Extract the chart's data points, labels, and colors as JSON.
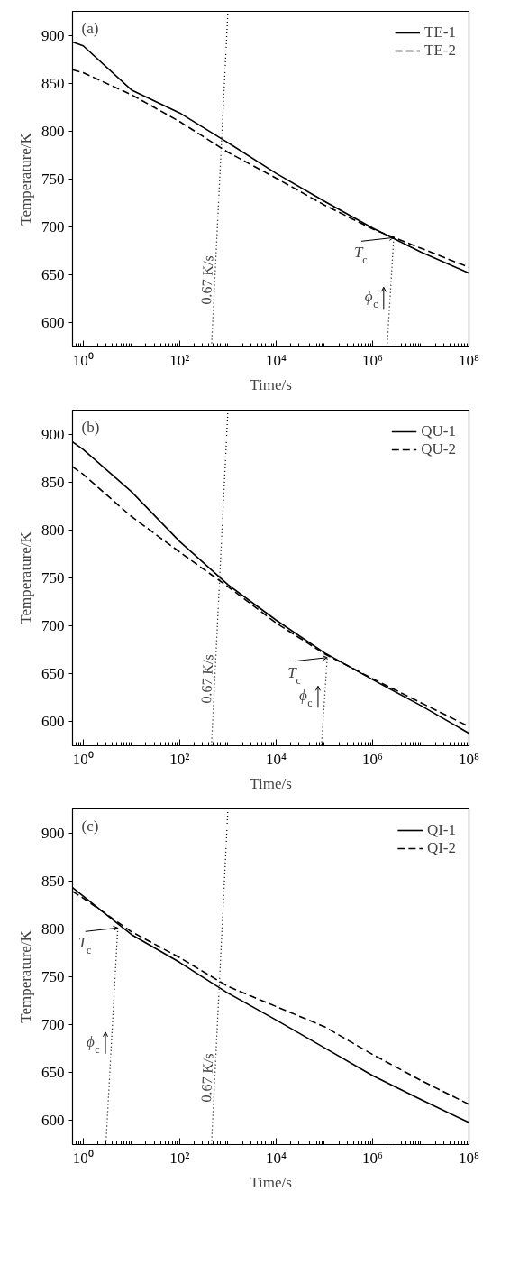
{
  "chart_data": [
    {
      "type": "line",
      "annotations": [
        "(a)",
        {
          "text": "T$_{c}$",
          "x": 2750000,
          "y": 689
        },
        {
          "text": "ϕ$_{c}$",
          "x": 2300000,
          "y": 626
        }
      ],
      "xlabel": "Time/s",
      "ylabel": "Temperature/K",
      "log": "x",
      "legend": "top right",
      "xlim": [
        0.6,
        100000000
      ],
      "ylim": [
        575,
        925
      ],
      "xticks": [
        {
          "value": 1,
          "label": "10⁰"
        },
        {
          "value": 100,
          "label": "10²"
        },
        {
          "value": 10000,
          "label": "10⁴"
        },
        {
          "value": 1000000,
          "label": "10⁶"
        },
        {
          "value": 100000000,
          "label": "10⁸"
        }
      ],
      "yticks": [
        600,
        650,
        700,
        750,
        800,
        850,
        900
      ],
      "x": [
        0.6,
        1,
        10,
        100,
        1000,
        10000,
        100000,
        1000000,
        10000000,
        100000000
      ],
      "series": [
        {
          "name": "TE-1",
          "color": "#000000",
          "line_style": "solid",
          "values": [
            893,
            889,
            843,
            819,
            788,
            756,
            727,
            699,
            674,
            652
          ]
        },
        {
          "name": "TE-2",
          "color": "#000000",
          "line_style": "dashed",
          "values": [
            864,
            861,
            838,
            810,
            778,
            751,
            723,
            698,
            678,
            658
          ]
        },
        {
          "name": "0.67 K/s",
          "color": "#000000",
          "line_style": "dotted",
          "x": [
            457,
            1000
          ],
          "values": [
            575,
            925
          ]
        },
        {
          "color": "#000000",
          "line_style": "dotted",
          "x": [
            2000000,
            2750000
          ],
          "values": [
            575,
            689
          ]
        }
      ]
    },
    {
      "type": "line",
      "annotations": [
        "(b)",
        {
          "text": "T$_{c}$",
          "x": 115000,
          "y": 667
        },
        {
          "text": "ϕ$_{c}$",
          "x": 100000,
          "y": 626
        }
      ],
      "xlabel": "Time/s",
      "ylabel": "Temperature/K",
      "log": "x",
      "legend": "top right",
      "xlim": [
        0.6,
        100000000
      ],
      "ylim": [
        575,
        925
      ],
      "xticks": [
        {
          "value": 1,
          "label": "10⁰"
        },
        {
          "value": 100,
          "label": "10²"
        },
        {
          "value": 10000,
          "label": "10⁴"
        },
        {
          "value": 1000000,
          "label": "10⁶"
        },
        {
          "value": 100000000,
          "label": "10⁸"
        }
      ],
      "yticks": [
        600,
        650,
        700,
        750,
        800,
        850,
        900
      ],
      "x": [
        0.6,
        1,
        10,
        100,
        1000,
        10000,
        100000,
        1000000,
        10000000,
        100000000
      ],
      "series": [
        {
          "name": "QU-1",
          "color": "#000000",
          "line_style": "solid",
          "values": [
            892,
            884,
            840,
            788,
            743,
            706,
            672,
            644,
            617,
            588
          ]
        },
        {
          "name": "QU-2",
          "color": "#000000",
          "line_style": "dashed",
          "values": [
            866,
            858,
            814,
            777,
            741,
            703,
            671,
            645,
            620,
            595
          ]
        },
        {
          "name": "0.67 K/s",
          "color": "#000000",
          "line_style": "dotted",
          "x": [
            457,
            1000
          ],
          "values": [
            575,
            925
          ]
        },
        {
          "color": "#000000",
          "line_style": "dotted",
          "x": [
            87000,
            115000
          ],
          "values": [
            575,
            667
          ]
        }
      ]
    },
    {
      "type": "line",
      "annotations": [
        "(c)",
        {
          "text": "T$_{c}$",
          "x": 5.2,
          "y": 801
        },
        {
          "text": "ϕ$_{c}$",
          "x": 3.9,
          "y": 681
        }
      ],
      "xlabel": "Time/s",
      "ylabel": "Temperature/K",
      "log": "x",
      "legend": "top right",
      "xlim": [
        0.6,
        100000000
      ],
      "ylim": [
        575,
        925
      ],
      "xticks": [
        {
          "value": 1,
          "label": "10⁰"
        },
        {
          "value": 100,
          "label": "10²"
        },
        {
          "value": 10000,
          "label": "10⁴"
        },
        {
          "value": 1000000,
          "label": "10⁶"
        },
        {
          "value": 100000000,
          "label": "10⁸"
        }
      ],
      "yticks": [
        600,
        650,
        700,
        750,
        800,
        850,
        900
      ],
      "x": [
        0.6,
        1,
        10,
        100,
        1000,
        10000,
        100000,
        1000000,
        10000000,
        100000000
      ],
      "series": [
        {
          "name": "QI-1",
          "color": "#000000",
          "line_style": "solid",
          "values": [
            843,
            834,
            794,
            765,
            733,
            705,
            676,
            647,
            622,
            598
          ]
        },
        {
          "name": "QI-2",
          "color": "#000000",
          "line_style": "dashed",
          "values": [
            839,
            832,
            797,
            770,
            740,
            719,
            698,
            669,
            642,
            617
          ]
        },
        {
          "name": "0.67 K/s",
          "color": "#000000",
          "line_style": "dotted",
          "x": [
            457,
            1000
          ],
          "values": [
            575,
            925
          ]
        },
        {
          "color": "#000000",
          "line_style": "dotted",
          "x": [
            2.95,
            5.2
          ],
          "values": [
            575,
            801
          ]
        }
      ]
    }
  ]
}
